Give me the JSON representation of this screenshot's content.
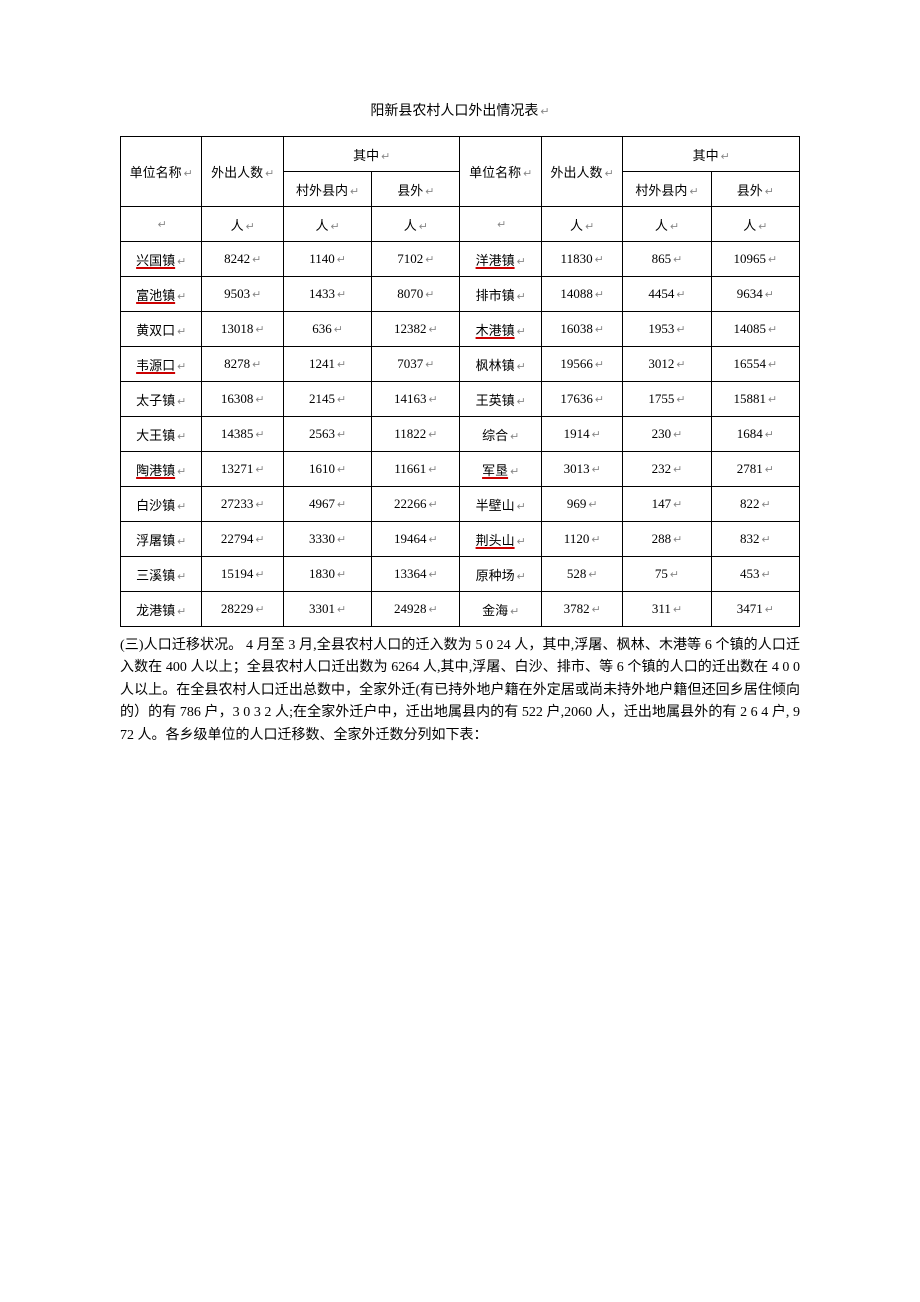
{
  "title": "阳新县农村人口外出情况表",
  "marker": "↵",
  "headers": {
    "unit_name": "单位名称",
    "outgoing": "外出人数",
    "outgoing2": "外出人数",
    "among": "其中",
    "in_county": "村外县内",
    "out_county": "县外",
    "person": "人"
  },
  "left_rows": [
    {
      "name": "兴国镇",
      "total": "8242",
      "in": "1140",
      "out": "7102",
      "ul": true
    },
    {
      "name": "富池镇",
      "total": "9503",
      "in": "1433",
      "out": "8070",
      "ul": true
    },
    {
      "name": "黄双口",
      "total": "13018",
      "in": "636",
      "out": "12382",
      "ul": false
    },
    {
      "name": "韦源口",
      "total": "8278",
      "in": "1241",
      "out": "7037",
      "ul": true
    },
    {
      "name": "太子镇",
      "total": "16308",
      "in": "2145",
      "out": "14163",
      "ul": false
    },
    {
      "name": "大王镇",
      "total": "14385",
      "in": "2563",
      "out": "11822",
      "ul": false
    },
    {
      "name": "陶港镇",
      "total": "13271",
      "in": "1610",
      "out": "11661",
      "ul": true
    },
    {
      "name": "白沙镇",
      "total": "27233",
      "in": "4967",
      "out": "22266",
      "ul": false
    },
    {
      "name": "浮屠镇",
      "total": "22794",
      "in": "3330",
      "out": "19464",
      "ul": false
    },
    {
      "name": "三溪镇",
      "total": "15194",
      "in": "1830",
      "out": "13364",
      "ul": false
    },
    {
      "name": "龙港镇",
      "total": "28229",
      "in": "3301",
      "out": "24928",
      "ul": false
    }
  ],
  "right_rows": [
    {
      "name": "洋港镇",
      "total": "11830",
      "in": "865",
      "out": "10965",
      "ul": true
    },
    {
      "name": "排市镇",
      "total": "14088",
      "in": "4454",
      "out": "9634",
      "ul": false
    },
    {
      "name": "木港镇",
      "total": "16038",
      "in": "1953",
      "out": "14085",
      "ul": true
    },
    {
      "name": "枫林镇",
      "total": "19566",
      "in": "3012",
      "out": "16554",
      "ul": false
    },
    {
      "name": "王英镇",
      "total": "17636",
      "in": "1755",
      "out": "15881",
      "ul": false
    },
    {
      "name": "综合",
      "total": "1914",
      "in": "230",
      "out": "1684",
      "ul": false
    },
    {
      "name": "军垦",
      "total": "3013",
      "in": "232",
      "out": "2781",
      "ul": true
    },
    {
      "name": "半壁山",
      "total": "969",
      "in": "147",
      "out": "822",
      "ul": false
    },
    {
      "name": "荆头山",
      "total": "1120",
      "in": "288",
      "out": "832",
      "ul": true
    },
    {
      "name": "原种场",
      "total": "528",
      "in": "75",
      "out": "453",
      "ul": false
    },
    {
      "name": "金海",
      "total": "3782",
      "in": "311",
      "out": "3471",
      "ul": false
    }
  ],
  "paragraph": "(三)人口迁移状况。 4 月至 3 月,全县农村人口的迁入数为 5 0 24 人，其中,浮屠、枫林、木港等 6 个镇的人口迁入数在 400 人以上；全县农村人口迁出数为 6264 人,其中,浮屠、白沙、排市、等 6 个镇的人口的迁出数在 4 0 0 人以上。在全县农村人口迁出总数中，全家外迁(有已持外地户籍在外定居或尚未持外地户籍但还回乡居住倾向的）的有 786 户，3 0 3 2 人;在全家外迁户中，迁出地属县内的有 522 户,2060 人，迁出地属县外的有 2 6 4 户, 9 72 人。各乡级单位的人口迁移数、全家外迁数分列如下表："
}
